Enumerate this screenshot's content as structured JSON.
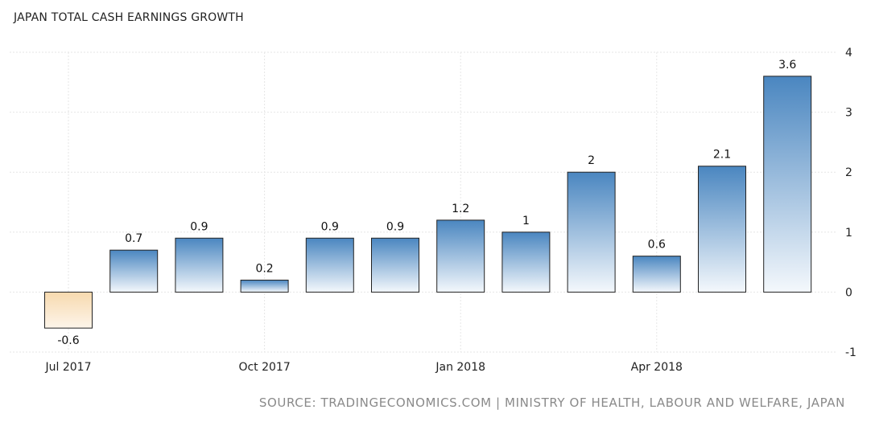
{
  "chart_data": {
    "type": "bar",
    "title": "JAPAN TOTAL CASH EARNINGS GROWTH",
    "xlabel": "",
    "ylabel": "",
    "ylim": [
      -1,
      4
    ],
    "y_ticks": [
      "4",
      "3",
      "2",
      "1",
      "0",
      "-1"
    ],
    "y_tick_values": [
      4,
      3,
      2,
      1,
      0,
      -1
    ],
    "x_tick_labels": [
      {
        "label": "Jul 2017",
        "index": 0
      },
      {
        "label": "Oct 2017",
        "index": 3
      },
      {
        "label": "Jan 2018",
        "index": 6
      },
      {
        "label": "Apr 2018",
        "index": 9
      }
    ],
    "values": [
      -0.6,
      0.7,
      0.9,
      0.2,
      0.9,
      0.9,
      1.2,
      1,
      2,
      0.6,
      2.1,
      3.6
    ],
    "data_labels": [
      "-0.6",
      "0.7",
      "0.9",
      "0.2",
      "0.9",
      "0.9",
      "1.2",
      "1",
      "2",
      "0.6",
      "2.1",
      "3.6"
    ],
    "grid": true,
    "colors": {
      "positive_top": "#4a86c0",
      "positive_bottom": "#f4f8fc",
      "negative_top": "#f7d9ae",
      "negative_bottom": "#fdf5ea",
      "bar_stroke": "#222222",
      "grid": "#e6e6e6"
    }
  },
  "source": "SOURCE: TRADINGECONOMICS.COM | MINISTRY OF HEALTH, LABOUR AND WELFARE, JAPAN"
}
